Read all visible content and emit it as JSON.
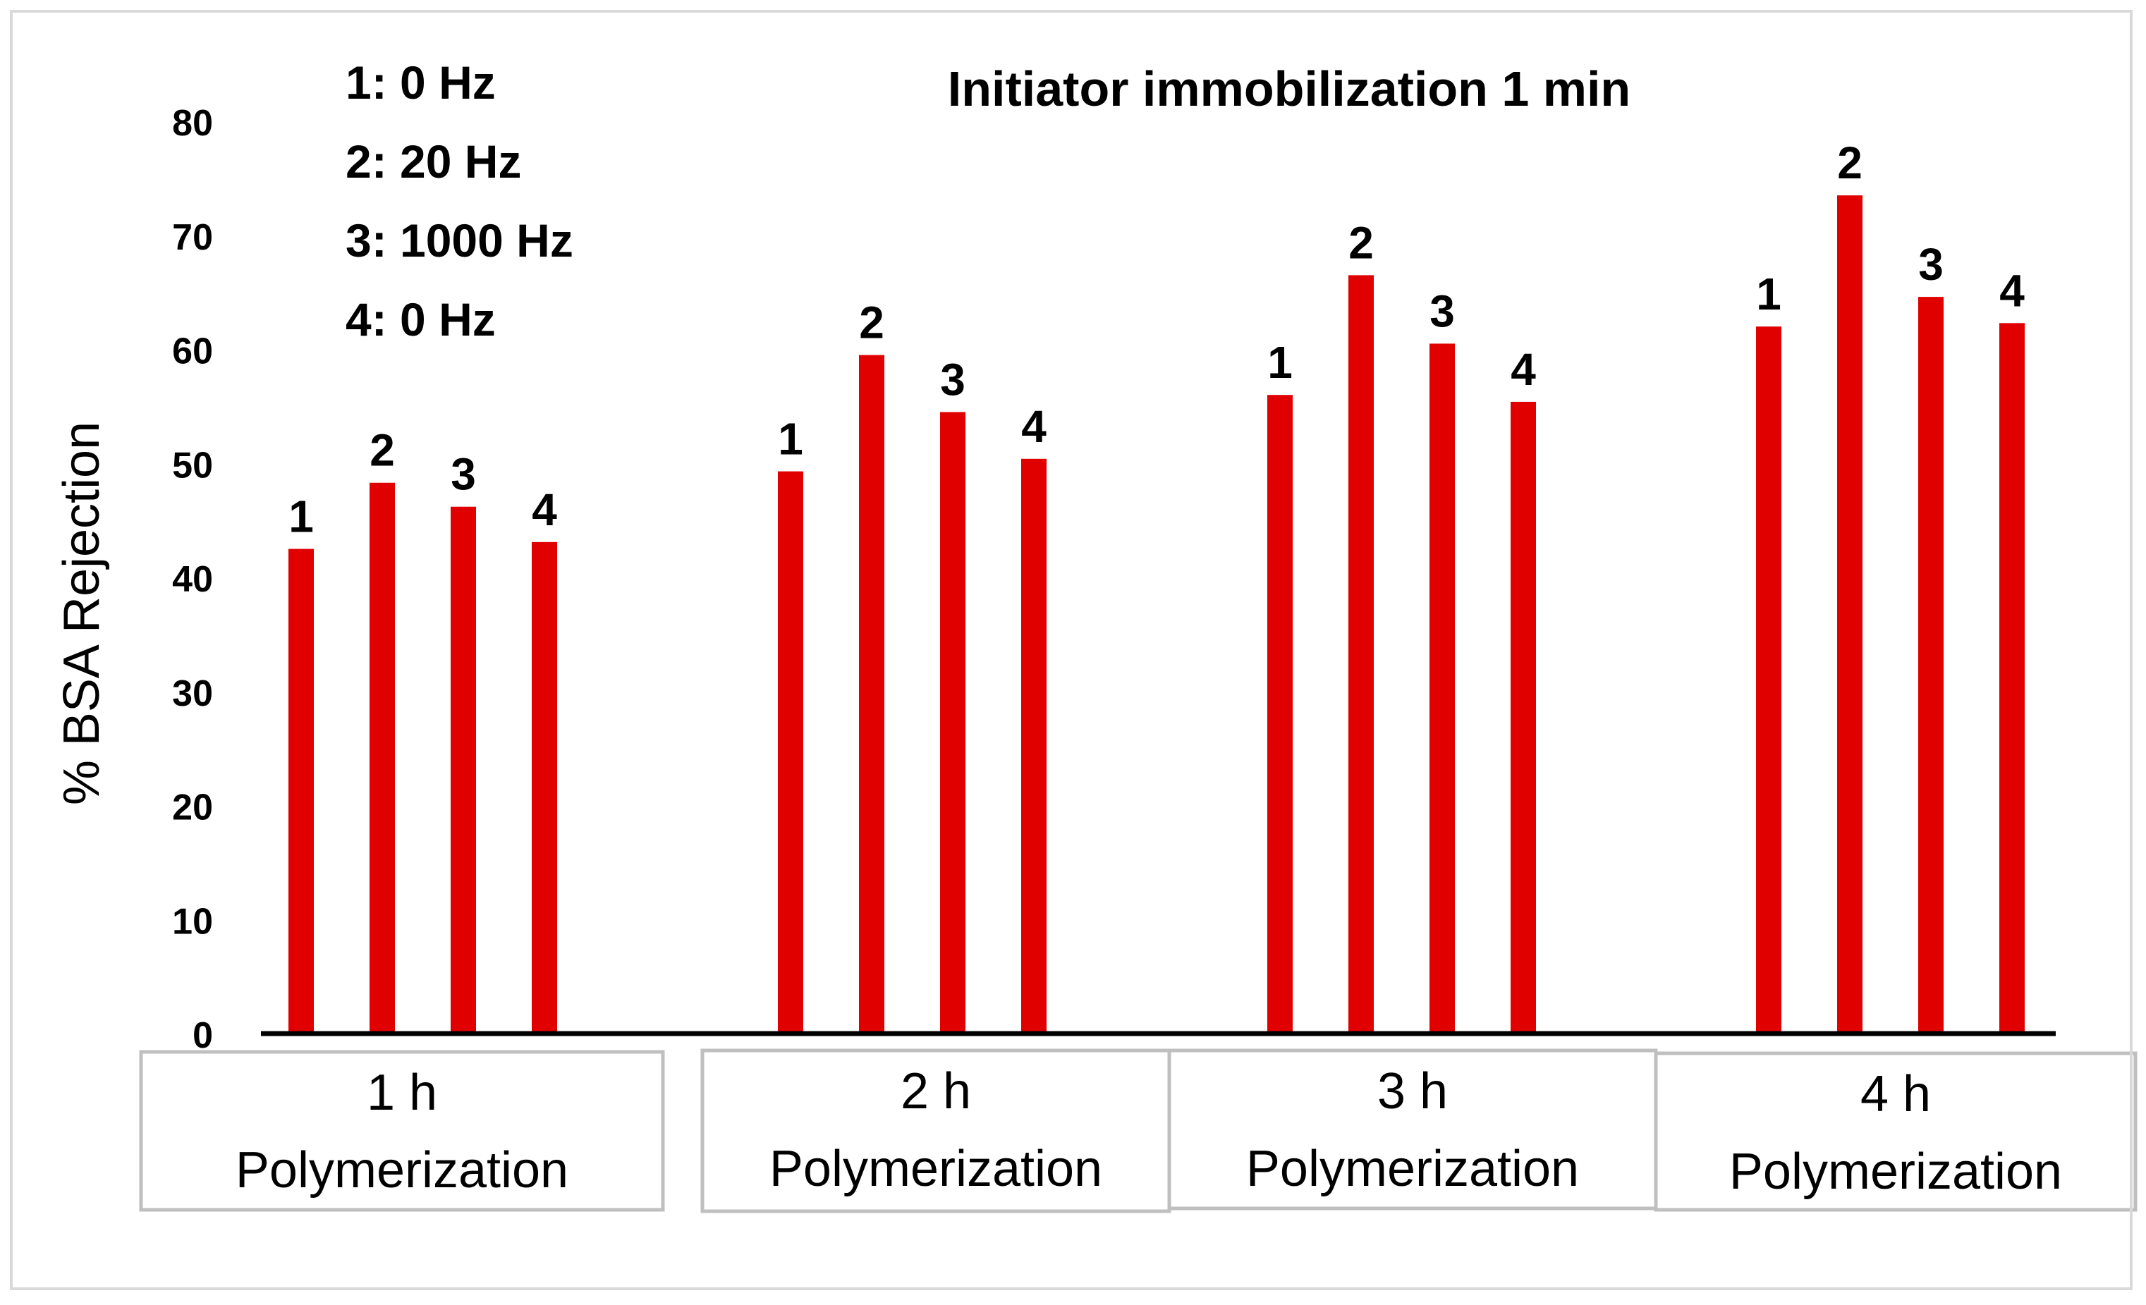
{
  "chart_data": {
    "type": "bar",
    "title": "Initiator immobilization 1 min",
    "ylabel": "% BSA Rejection",
    "xlabel": "",
    "ylim": [
      0,
      80
    ],
    "yticks": [
      0,
      10,
      20,
      30,
      40,
      50,
      60,
      70,
      80
    ],
    "grid": false,
    "legend_position": "top-left",
    "legend": [
      "1: 0 Hz",
      "2: 20 Hz",
      "3: 1000 Hz",
      "4: 0 Hz"
    ],
    "categories": [
      {
        "line1": "1 h",
        "line2": "Polymerization"
      },
      {
        "line1": "2 h",
        "line2": "Polymerization"
      },
      {
        "line1": "3 h",
        "line2": "Polymerization"
      },
      {
        "line1": "4 h",
        "line2": "Polymerization"
      }
    ],
    "bar_labels": [
      "1",
      "2",
      "3",
      "4"
    ],
    "series": [
      {
        "values": [
          42.5,
          49.3,
          56.0,
          62.0
        ]
      },
      {
        "values": [
          48.3,
          59.5,
          66.5,
          73.5
        ]
      },
      {
        "values": [
          46.2,
          54.5,
          60.5,
          64.6
        ]
      },
      {
        "values": [
          43.1,
          50.4,
          55.4,
          62.3
        ]
      }
    ],
    "bar_color": "#e00000"
  }
}
